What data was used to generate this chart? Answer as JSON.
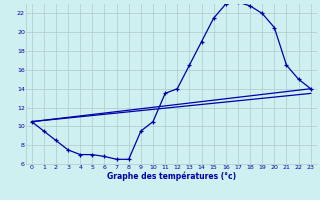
{
  "title": "Graphe des températures (°c)",
  "bg_color": "#cff0f0",
  "grid_color": "#b0c8c8",
  "line_color": "#0000aa",
  "xlim": [
    -0.5,
    23.5
  ],
  "ylim": [
    6,
    23
  ],
  "xticks": [
    0,
    1,
    2,
    3,
    4,
    5,
    6,
    7,
    8,
    9,
    10,
    11,
    12,
    13,
    14,
    15,
    16,
    17,
    18,
    19,
    20,
    21,
    22,
    23
  ],
  "yticks": [
    6,
    8,
    10,
    12,
    14,
    16,
    18,
    20,
    22
  ],
  "hours": [
    0,
    1,
    2,
    3,
    4,
    5,
    6,
    7,
    8,
    9,
    10,
    11,
    12,
    13,
    14,
    15,
    16,
    17,
    18,
    19,
    20,
    21,
    22,
    23
  ],
  "temps": [
    10.5,
    9.5,
    8.5,
    7.5,
    7.0,
    7.0,
    6.8,
    6.5,
    6.5,
    9.5,
    10.5,
    13.5,
    14.0,
    16.5,
    19.0,
    21.5,
    23.0,
    23.2,
    22.8,
    22.0,
    20.5,
    16.5,
    15.0,
    14.0
  ],
  "ref_line1_x": [
    0,
    23
  ],
  "ref_line1_y": [
    10.5,
    13.5
  ],
  "ref_line2_x": [
    0,
    23
  ],
  "ref_line2_y": [
    10.5,
    14.0
  ]
}
